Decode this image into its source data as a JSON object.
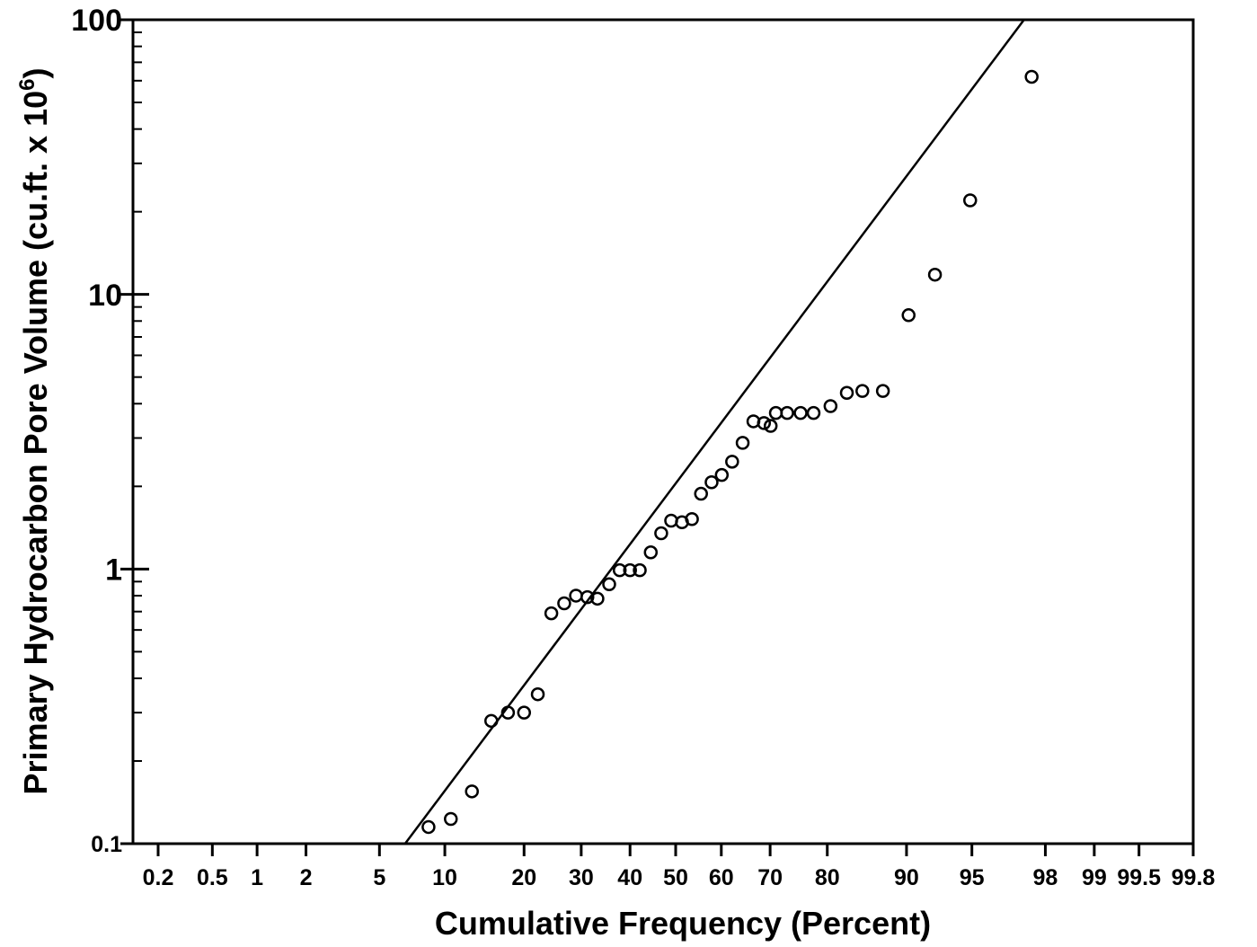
{
  "chart_data": {
    "type": "scatter",
    "title": "",
    "xlabel": "Cumulative Frequency (Percent)",
    "ylabel": "Primary Hydrocarbon Pore Volume (cu.ft. x 10",
    "ylabel_superscript": "6",
    "ylabel_suffix": ")",
    "x_scale": "probability",
    "y_scale": "log",
    "xlim": [
      0.2,
      99.8
    ],
    "ylim": [
      0.1,
      100
    ],
    "x_ticks": [
      0.2,
      0.5,
      1,
      2,
      5,
      10,
      20,
      30,
      40,
      50,
      60,
      70,
      80,
      90,
      95,
      98,
      99,
      99.5,
      99.8
    ],
    "x_tick_labels": [
      "0.2",
      "0.5",
      "1",
      "2",
      "5",
      "10",
      "20",
      "30",
      "40",
      "50",
      "60",
      "70",
      "80",
      "90",
      "95",
      "98",
      "99",
      "99.5",
      "99.8"
    ],
    "y_ticks": [
      0.1,
      1,
      10,
      100
    ],
    "y_tick_labels": [
      "0.1",
      "1",
      "10",
      "100"
    ],
    "grid": false,
    "legend": "none",
    "series": [
      {
        "marker": "open-circle",
        "points": [
          [
            8.5,
            0.115
          ],
          [
            10.6,
            0.123
          ],
          [
            12.9,
            0.155
          ],
          [
            15.3,
            0.28
          ],
          [
            17.6,
            0.3
          ],
          [
            20.0,
            0.3
          ],
          [
            22.2,
            0.35
          ],
          [
            24.5,
            0.69
          ],
          [
            26.8,
            0.75
          ],
          [
            29.0,
            0.8
          ],
          [
            31.2,
            0.79
          ],
          [
            33.2,
            0.78
          ],
          [
            35.6,
            0.88
          ],
          [
            37.8,
            0.99
          ],
          [
            40.0,
            0.99
          ],
          [
            42.1,
            0.99
          ],
          [
            44.5,
            1.15
          ],
          [
            46.8,
            1.35
          ],
          [
            49.0,
            1.5
          ],
          [
            51.4,
            1.48
          ],
          [
            53.6,
            1.52
          ],
          [
            55.6,
            1.88
          ],
          [
            57.9,
            2.07
          ],
          [
            60.1,
            2.2
          ],
          [
            62.3,
            2.46
          ],
          [
            64.5,
            2.88
          ],
          [
            66.7,
            3.45
          ],
          [
            68.8,
            3.4
          ],
          [
            70.1,
            3.32
          ],
          [
            71.1,
            3.7
          ],
          [
            73.2,
            3.7
          ],
          [
            75.6,
            3.7
          ],
          [
            77.8,
            3.7
          ],
          [
            80.5,
            3.92
          ],
          [
            82.9,
            4.38
          ],
          [
            85.0,
            4.45
          ],
          [
            87.5,
            4.45
          ],
          [
            90.2,
            8.4
          ],
          [
            92.5,
            11.8
          ],
          [
            94.9,
            22.0
          ],
          [
            97.6,
            62.0
          ]
        ]
      }
    ],
    "fit_line": {
      "style": "solid",
      "points": [
        [
          6.65,
          0.1
        ],
        [
          97.35,
          100
        ]
      ]
    }
  }
}
